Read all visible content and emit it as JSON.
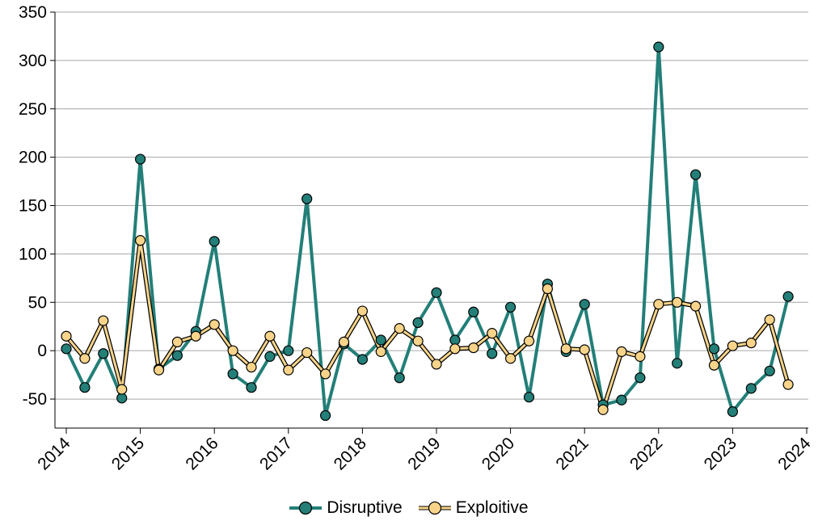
{
  "chart_data": {
    "type": "line",
    "title": "",
    "xlabel": "",
    "ylabel": "",
    "ylim": [
      -80,
      350
    ],
    "xlim": [
      2014,
      2024
    ],
    "yticks": [
      -50,
      0,
      50,
      100,
      150,
      200,
      250,
      300,
      350
    ],
    "xticks": [
      "2014",
      "2015",
      "2016",
      "2017",
      "2018",
      "2019",
      "2020",
      "2021",
      "2022",
      "2023",
      "2024"
    ],
    "grid": "horizontal",
    "legend_position": "bottom",
    "x": [
      2014.0,
      2014.25,
      2014.5,
      2014.75,
      2015.0,
      2015.25,
      2015.5,
      2015.75,
      2016.0,
      2016.25,
      2016.5,
      2016.75,
      2017.0,
      2017.25,
      2017.5,
      2017.75,
      2018.0,
      2018.25,
      2018.5,
      2018.75,
      2019.0,
      2019.25,
      2019.5,
      2019.75,
      2020.0,
      2020.25,
      2020.5,
      2020.75,
      2021.0,
      2021.25,
      2021.5,
      2021.75,
      2022.0,
      2022.25,
      2022.5,
      2022.75,
      2023.0,
      2023.25,
      2023.5,
      2023.75
    ],
    "series": [
      {
        "name": "Disruptive",
        "color": "#237f78",
        "values": [
          2,
          -38,
          -3,
          -49,
          198,
          -19,
          -5,
          20,
          113,
          -24,
          -38,
          -6,
          0,
          157,
          -67,
          7,
          -9,
          11,
          -28,
          29,
          60,
          11,
          40,
          -3,
          45,
          -48,
          69,
          -1,
          48,
          -56,
          -51,
          -28,
          314,
          -13,
          182,
          2,
          -63,
          -39,
          -21,
          56
        ]
      },
      {
        "name": "Exploitive",
        "color": "#f7d48a",
        "values": [
          15,
          -8,
          31,
          -40,
          114,
          -20,
          9,
          15,
          27,
          0,
          -17,
          15,
          -20,
          -2,
          -24,
          9,
          41,
          -1,
          23,
          10,
          -14,
          2,
          3,
          18,
          -8,
          10,
          64,
          2,
          1,
          -61,
          -1,
          -6,
          48,
          50,
          46,
          -15,
          5,
          8,
          32,
          -35
        ]
      }
    ]
  }
}
